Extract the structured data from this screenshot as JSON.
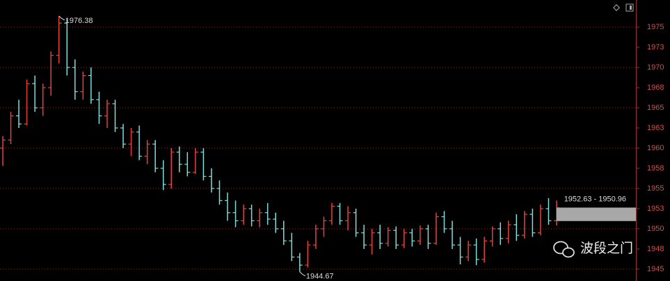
{
  "chart_data": {
    "type": "ohlc",
    "open": [
      1960,
      1961,
      1964,
      1963,
      1968,
      1965,
      1967.5,
      1971.5,
      1975.5,
      1970,
      1967,
      1969,
      1966,
      1964,
      1965.5,
      1962.5,
      1960.5,
      1962,
      1959,
      1960.5,
      1957.5,
      1955.5,
      1959.5,
      1958,
      1957,
      1959.5,
      1956.5,
      1955,
      1953.5,
      1952,
      1951,
      1952.5,
      1951,
      1952,
      1951.2,
      1950,
      1948.5,
      1946.5,
      1945.5,
      1948,
      1950,
      1951,
      1952.8,
      1951,
      1952,
      1949.5,
      1948,
      1949.5,
      1948.2,
      1949.8,
      1948,
      1949.5,
      1948.5,
      1950,
      1948.2,
      1951.5,
      1950,
      1948,
      1946.5,
      1948,
      1946.2,
      1948.5,
      1950,
      1948.8,
      1950.5,
      1949.2,
      1951.8,
      1949.5,
      1952.5,
      1951
    ],
    "high": [
      1961.5,
      1964.5,
      1966,
      1968.5,
      1969,
      1968,
      1972,
      1976.38,
      1976,
      1971,
      1969.5,
      1970,
      1967,
      1966,
      1966,
      1963,
      1962.5,
      1962.8,
      1961,
      1961,
      1958.5,
      1960,
      1960.2,
      1959.5,
      1960,
      1960,
      1957.5,
      1956,
      1954.5,
      1953.5,
      1953,
      1953,
      1952.5,
      1953.2,
      1952,
      1951,
      1949.5,
      1947,
      1948.5,
      1950.5,
      1951.5,
      1953.2,
      1953.2,
      1952.8,
      1952.5,
      1950.5,
      1950,
      1950.5,
      1950.2,
      1950.3,
      1950,
      1950,
      1950.4,
      1950.5,
      1952,
      1952.2,
      1951,
      1949,
      1948.5,
      1948.8,
      1949,
      1950.3,
      1950.8,
      1951,
      1951.8,
      1952.2,
      1952.5,
      1953,
      1953.8,
      1953.5
    ],
    "low": [
      1957.8,
      1960.5,
      1962.5,
      1962.8,
      1964.5,
      1964,
      1966.5,
      1970.5,
      1969,
      1966,
      1966,
      1965.5,
      1963,
      1962.5,
      1962,
      1960,
      1959,
      1958.5,
      1958,
      1957,
      1954.8,
      1955,
      1957,
      1956.5,
      1956.8,
      1956,
      1954.5,
      1953,
      1951,
      1950.2,
      1950.5,
      1950.3,
      1950.2,
      1950.5,
      1949.5,
      1948,
      1946,
      1944.67,
      1945.2,
      1947.5,
      1949,
      1950.5,
      1950.5,
      1949.8,
      1949,
      1947.5,
      1946.8,
      1947.5,
      1947.8,
      1947.5,
      1947.6,
      1947.8,
      1948,
      1947.5,
      1948,
      1949.5,
      1947.5,
      1945.6,
      1946,
      1945.5,
      1945.8,
      1947.8,
      1948,
      1948.2,
      1948.5,
      1948.8,
      1949,
      1949.2,
      1950.5,
      1950.4
    ],
    "close": [
      1961,
      1964,
      1963,
      1968,
      1965,
      1967.5,
      1971.5,
      1975.5,
      1970,
      1967,
      1969,
      1966,
      1964,
      1965.5,
      1962.5,
      1960.5,
      1962,
      1959,
      1960.5,
      1957.5,
      1955.5,
      1959.5,
      1958,
      1957,
      1959.5,
      1956.5,
      1955,
      1953.5,
      1952,
      1951,
      1952.5,
      1951,
      1952,
      1951.2,
      1950,
      1948.5,
      1946.5,
      1945.5,
      1948,
      1950,
      1951,
      1952.8,
      1951,
      1952,
      1949.5,
      1948,
      1949.5,
      1948.2,
      1949.8,
      1948,
      1949.5,
      1948.5,
      1950,
      1948.2,
      1951.5,
      1950,
      1948,
      1946.5,
      1948,
      1946.2,
      1948.5,
      1950,
      1948.8,
      1950.5,
      1949.2,
      1951.8,
      1949.5,
      1952.5,
      1951,
      1952.6
    ],
    "up_color": "#e8413c",
    "down_color": "#7fdede",
    "ylim": [
      1943.53,
      1978.36
    ],
    "yticks": [
      1945,
      {
        "value": 1947.5,
        "label": "1948"
      },
      1950,
      {
        "value": 1952.5,
        "label": "1953"
      },
      1955,
      {
        "value": 1957.5,
        "label": "1958"
      },
      1960,
      {
        "value": 1962.5,
        "label": "1963"
      },
      1965,
      {
        "value": 1967.5,
        "label": "1968"
      },
      1970,
      {
        "value": 1972.5,
        "label": "1973"
      },
      1975
    ],
    "grid": true,
    "high_annotation": {
      "value": 1976.38,
      "label": "1976.38"
    },
    "low_annotation": {
      "value": 1944.67,
      "label": "1944.67"
    },
    "range_box": {
      "high": 1952.63,
      "low": 1950.96,
      "label": "1952.63 - 1950.96"
    }
  },
  "watermark": "波段之门"
}
